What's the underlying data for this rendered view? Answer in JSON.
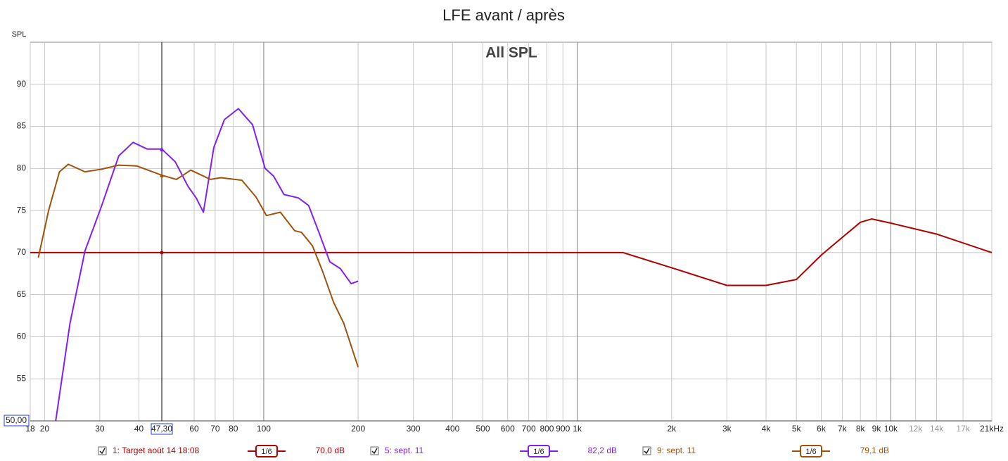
{
  "chart_data": {
    "type": "line",
    "title": "LFE avant / après",
    "subtitle": "All SPL",
    "y_label": "SPL",
    "x_scale": "log",
    "grid": true,
    "xlim": [
      18,
      21000
    ],
    "ylim": [
      50,
      95
    ],
    "yticks": [
      55,
      60,
      65,
      70,
      75,
      80,
      85,
      90
    ],
    "xticks": [
      18,
      20,
      30,
      40,
      60,
      70,
      80,
      100,
      200,
      300,
      400,
      500,
      600,
      700,
      800,
      900,
      {
        "value": 1000,
        "label": "1k"
      },
      {
        "value": 2000,
        "label": "2k"
      },
      {
        "value": 3000,
        "label": "3k"
      },
      {
        "value": 4000,
        "label": "4k"
      },
      {
        "value": 5000,
        "label": "5k"
      },
      {
        "value": 6000,
        "label": "6k"
      },
      {
        "value": 7000,
        "label": "7k"
      },
      {
        "value": 8000,
        "label": "8k"
      },
      {
        "value": 9000,
        "label": "9k"
      },
      {
        "value": 10000,
        "label": "10k"
      },
      {
        "value": 21000,
        "label": "21kHz"
      }
    ],
    "xticks_minor": [
      {
        "value": 12000,
        "label": "12k"
      },
      {
        "value": 14000,
        "label": "14k"
      },
      {
        "value": 17000,
        "label": "17k"
      }
    ],
    "cursor": {
      "x": {
        "value": 47.3,
        "label": "47,30"
      },
      "y": {
        "value": 50,
        "label": "50,00"
      }
    },
    "series": [
      {
        "name": "1: Target août 14 18:08",
        "color": "#b00000",
        "smoothing": "1/6",
        "cursor_value": 70,
        "cursor_value_label": "70,0 dB",
        "x": [
          18,
          1400,
          2000,
          3000,
          4000,
          5000,
          6000,
          7000,
          8000,
          8700,
          10000,
          14000,
          21000
        ],
        "values": [
          70,
          70,
          68.2,
          66.1,
          66.1,
          66.8,
          69.7,
          71.8,
          73.6,
          74,
          73.5,
          72.2,
          70
        ]
      },
      {
        "name": "5: sept. 11",
        "color": "#8020f0",
        "smoothing": "1/6",
        "cursor_value": 82.2,
        "cursor_value_label": "82,2 dB",
        "x": [
          21.7,
          24.1,
          26.9,
          30.3,
          34.5,
          38.3,
          42.5,
          47.3,
          52.2,
          57.3,
          60.9,
          64.2,
          69.3,
          74.9,
          83,
          92.1,
          101,
          107.5,
          116,
          129,
          139,
          150,
          162.5,
          175.5,
          190,
          200
        ],
        "values": [
          50,
          61.6,
          70.2,
          75.4,
          81.5,
          83.1,
          82.3,
          82.3,
          80.8,
          77.9,
          76.5,
          74.8,
          82.5,
          85.8,
          87.1,
          85.2,
          80,
          79.1,
          76.9,
          76.5,
          75.6,
          72.4,
          68.9,
          68.1,
          66.3,
          66.6
        ]
      },
      {
        "name": "9: sept. 11",
        "color": "#a0520a",
        "smoothing": "1/6",
        "cursor_value": 79.1,
        "cursor_value_label": "79,1 dB",
        "x": [
          19.1,
          20.6,
          22.3,
          23.8,
          26.9,
          30.3,
          34.5,
          39.3,
          47.3,
          52.7,
          58.5,
          67.6,
          73,
          85.2,
          94.5,
          102,
          113,
          125.5,
          132,
          143,
          154,
          167,
          180,
          200
        ],
        "values": [
          69.4,
          75,
          79.6,
          80.5,
          79.6,
          79.9,
          80.4,
          80.3,
          79.2,
          78.7,
          79.8,
          78.7,
          78.9,
          78.6,
          76.6,
          74.4,
          74.8,
          72.6,
          72.4,
          70.8,
          67.8,
          64.1,
          61.6,
          56.4
        ]
      }
    ]
  }
}
